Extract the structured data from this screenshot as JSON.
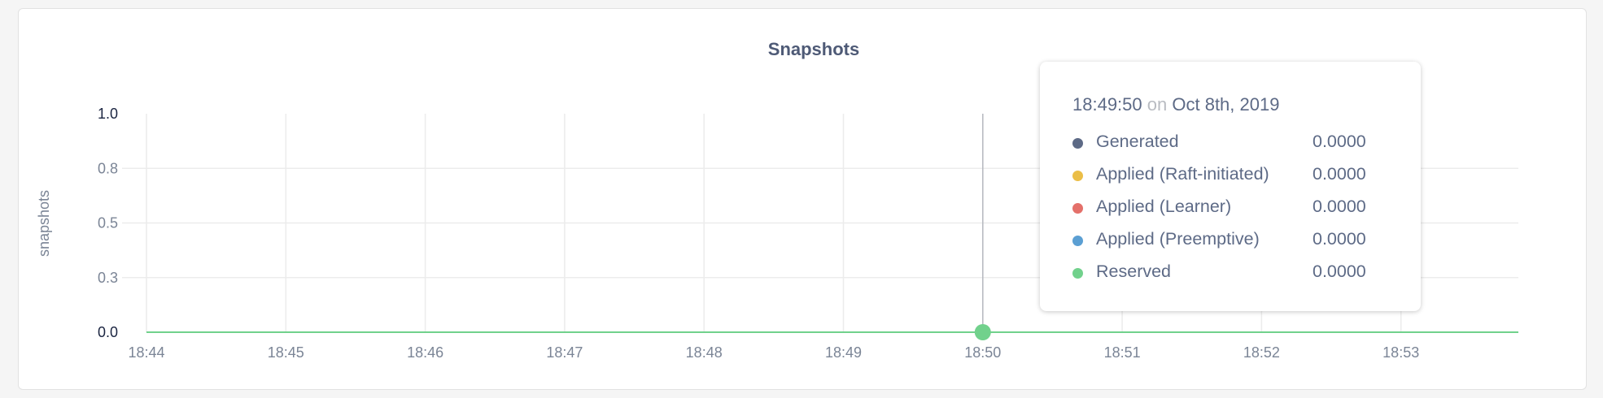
{
  "chart_data": {
    "type": "line",
    "title": "Snapshots",
    "ylabel": "snapshots",
    "xlabel": "",
    "ylim": [
      0,
      1.0
    ],
    "y_ticks": [
      "0.0",
      "0.3",
      "0.5",
      "0.8",
      "1.0"
    ],
    "y_tick_values": [
      0,
      0.25,
      0.5,
      0.75,
      1.0
    ],
    "x_ticks": [
      "18:44",
      "18:45",
      "18:46",
      "18:47",
      "18:48",
      "18:49",
      "18:50",
      "18:51",
      "18:52",
      "18:53"
    ],
    "grid": true,
    "series": [
      {
        "name": "Generated",
        "color": "#5d6a86",
        "values": "all 0"
      },
      {
        "name": "Applied (Raft-initiated)",
        "color": "#ebbe47",
        "values": "all 0"
      },
      {
        "name": "Applied (Learner)",
        "color": "#e4706a",
        "values": "all 0"
      },
      {
        "name": "Applied (Preemptive)",
        "color": "#5b9fd3",
        "values": "all 0"
      },
      {
        "name": "Reserved",
        "color": "#71d18c",
        "values": "all 0"
      }
    ],
    "hover": {
      "x": "18:50",
      "time": "18:49:50",
      "on": "on",
      "date": "Oct 8th, 2019",
      "rows": [
        {
          "label": "Generated",
          "value": "0.0000",
          "color": "#5d6a86"
        },
        {
          "label": "Applied (Raft-initiated)",
          "value": "0.0000",
          "color": "#ebbe47"
        },
        {
          "label": "Applied (Learner)",
          "value": "0.0000",
          "color": "#e4706a"
        },
        {
          "label": "Applied (Preemptive)",
          "value": "0.0000",
          "color": "#5b9fd3"
        },
        {
          "label": "Reserved",
          "value": "0.0000",
          "color": "#71d18c"
        }
      ]
    }
  }
}
